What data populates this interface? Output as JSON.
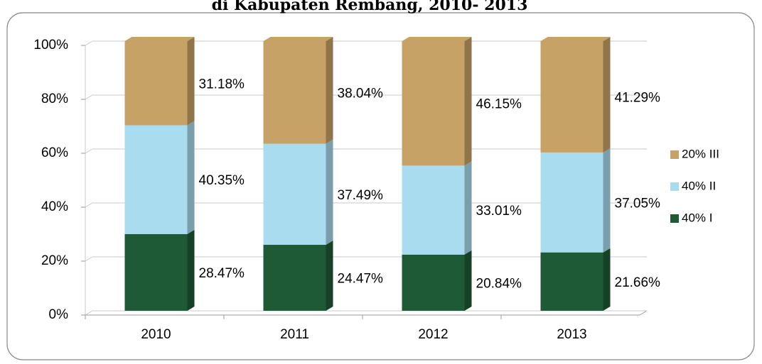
{
  "chart_data": {
    "type": "stacked_bar",
    "title": "di Kabupaten Rembang, 2010- 2013",
    "categories": [
      "2010",
      "2011",
      "2012",
      "2013"
    ],
    "series": [
      {
        "name": "40% I",
        "color": "#1f5a36",
        "values": [
          28.47,
          24.47,
          20.84,
          21.66
        ],
        "value_labels": [
          "28.47%",
          "24.47%",
          "20.84%",
          "21.66%"
        ]
      },
      {
        "name": "40% II",
        "color": "#a9dcee",
        "values": [
          40.35,
          37.49,
          33.01,
          37.05
        ],
        "value_labels": [
          "40.35%",
          "37.49%",
          "33.01%",
          "37.05%"
        ]
      },
      {
        "name": "20% III",
        "color": "#c6a266",
        "values": [
          31.18,
          38.04,
          46.15,
          41.29
        ],
        "value_labels": [
          "31.18%",
          "38.04%",
          "46.15%",
          "41.29%"
        ]
      }
    ],
    "ylim": [
      0,
      100
    ],
    "yticks": [
      {
        "value": 0,
        "label": "0%"
      },
      {
        "value": 20,
        "label": "20%"
      },
      {
        "value": 40,
        "label": "40%"
      },
      {
        "value": 60,
        "label": "60%"
      },
      {
        "value": 80,
        "label": "80%"
      },
      {
        "value": 100,
        "label": "100%"
      }
    ],
    "grid": true,
    "legend": "right"
  }
}
